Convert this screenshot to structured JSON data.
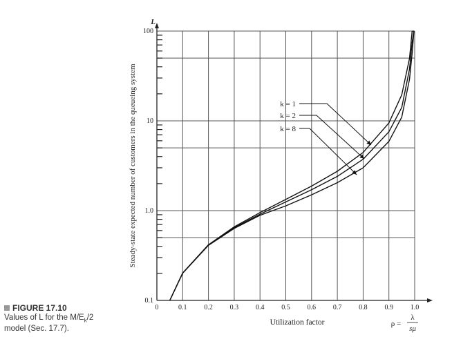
{
  "caption": {
    "figure_label": "FIGURE 17.10",
    "text_line1": "Values of L for the M/E",
    "subscript": "k",
    "text_line1_end": "/2",
    "text_line2": "model (Sec. 17.7)."
  },
  "chart_data": {
    "type": "line",
    "title": "",
    "xlabel": "Utilization factor",
    "xformula": {
      "lhs": "ρ =",
      "numerator": "λ",
      "denominator": "sμ"
    },
    "ylabel": "Steady-state expected number of customers in the queueing system",
    "y_axis_symbol": "L",
    "xlim": [
      0,
      1.0
    ],
    "ylim": [
      0.1,
      100
    ],
    "yscale": "log",
    "x_ticks": [
      "0",
      "0.1",
      "0.2",
      "0.3",
      "0.4",
      "0.5",
      "0.6",
      "0.7",
      "0.8",
      "0.9",
      "1.0"
    ],
    "y_ticks": [
      {
        "value": 0.1,
        "label": "0.1"
      },
      {
        "value": 1,
        "label": "1.0"
      },
      {
        "value": 10,
        "label": "10"
      },
      {
        "value": 100,
        "label": "100"
      }
    ],
    "h_gridlines": [
      0.5,
      1,
      5,
      10,
      50,
      100
    ],
    "v_gridlines": [
      0.1,
      0.2,
      0.3,
      0.4,
      0.5,
      0.6,
      0.7,
      0.8,
      0.9,
      1.0
    ],
    "grid": true,
    "x": [
      0.05,
      0.1,
      0.2,
      0.3,
      0.4,
      0.5,
      0.6,
      0.7,
      0.8,
      0.9,
      0.95,
      0.98,
      0.99,
      0.997
    ],
    "series": [
      {
        "name": "k = 1",
        "values": [
          0.1,
          0.202,
          0.417,
          0.659,
          0.952,
          1.333,
          1.875,
          2.745,
          4.444,
          9.474,
          19.49,
          49.5,
          99.5,
          100
        ]
      },
      {
        "name": "k = 2",
        "values": [
          0.1,
          0.2015,
          0.413,
          0.644,
          0.914,
          1.25,
          1.706,
          2.409,
          3.733,
          7.556,
          14.09,
          37.6,
          75.1,
          100
        ]
      },
      {
        "name": "k = 8",
        "values": [
          0.1,
          0.201,
          0.41,
          0.633,
          0.886,
          1.13,
          1.5,
          2.05,
          3.0,
          5.9,
          11.0,
          29.0,
          56.0,
          100
        ]
      }
    ]
  }
}
